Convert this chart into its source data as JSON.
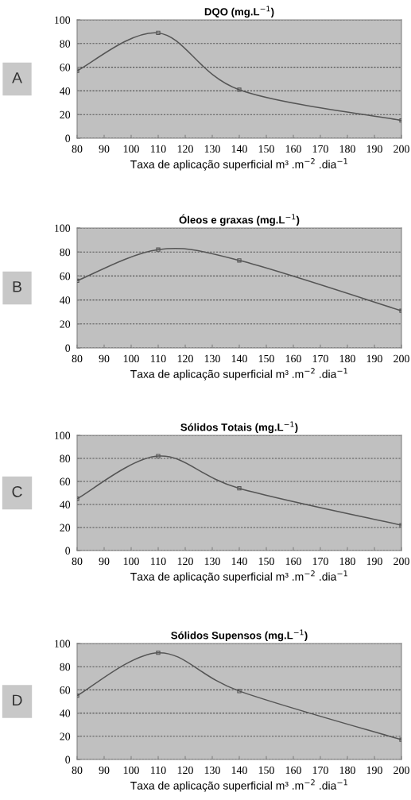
{
  "chart_data": [
    {
      "type": "line",
      "title": "DQO (mg.L$^{−1}$)",
      "xlabel": "Taxa de aplicação superficial m³ .m$^{−2}$ .dia$^{−1}$",
      "annotations": [
        "A"
      ],
      "x": [
        80,
        110,
        140,
        200
      ],
      "series": [
        {
          "color": "#555555",
          "values": [
            57,
            89,
            41,
            15
          ]
        }
      ],
      "xlim": [
        80,
        200
      ],
      "xticks": [
        80,
        90,
        100,
        110,
        120,
        130,
        140,
        150,
        160,
        170,
        180,
        190,
        200
      ],
      "ylim": [
        0,
        100
      ],
      "yticks": [
        0,
        20,
        40,
        60,
        80,
        100
      ],
      "grid": "y",
      "marker": "square",
      "line_style": "solid"
    },
    {
      "type": "line",
      "title": "Óleos e graxas (mg.L$^{−1}$)",
      "xlabel": "Taxa de aplicação superficial m³ .m$^{−2}$ .dia$^{−1}$",
      "annotations": [
        "B"
      ],
      "x": [
        80,
        110,
        140,
        200
      ],
      "series": [
        {
          "color": "#555555",
          "values": [
            56,
            82,
            73,
            31
          ]
        }
      ],
      "xlim": [
        80,
        200
      ],
      "xticks": [
        80,
        90,
        100,
        110,
        120,
        130,
        140,
        150,
        160,
        170,
        180,
        190,
        200
      ],
      "ylim": [
        0,
        100
      ],
      "yticks": [
        0,
        20,
        40,
        60,
        80,
        100
      ],
      "grid": "y",
      "marker": "square",
      "line_style": "solid"
    },
    {
      "type": "line",
      "title": "Sólidos Totais (mg.L$^{−1}$)",
      "xlabel": "Taxa de aplicação superficial m³ .m$^{−2}$ .dia$^{−1}$",
      "annotations": [
        "C"
      ],
      "x": [
        80,
        110,
        140,
        200
      ],
      "series": [
        {
          "color": "#555555",
          "values": [
            45,
            82,
            54,
            22
          ]
        }
      ],
      "xlim": [
        80,
        200
      ],
      "xticks": [
        80,
        90,
        100,
        110,
        120,
        130,
        140,
        150,
        160,
        170,
        180,
        190,
        200
      ],
      "ylim": [
        0,
        100
      ],
      "yticks": [
        0,
        20,
        40,
        60,
        80,
        100
      ],
      "grid": "y",
      "marker": "square",
      "line_style": "solid"
    },
    {
      "type": "line",
      "title": "Sólidos Supensos (mg.L$^{−1}$)",
      "xlabel": "Taxa de aplicação superficial m³ .m$^{−2}$ .dia$^{−1}$",
      "annotations": [
        "D"
      ],
      "x": [
        80,
        110,
        140,
        200
      ],
      "series": [
        {
          "color": "#555555",
          "values": [
            55,
            92,
            59,
            17
          ]
        }
      ],
      "xlim": [
        80,
        200
      ],
      "xticks": [
        80,
        90,
        100,
        110,
        120,
        130,
        140,
        150,
        160,
        170,
        180,
        190,
        200
      ],
      "ylim": [
        0,
        100
      ],
      "yticks": [
        0,
        20,
        40,
        60,
        80,
        100
      ],
      "grid": "y",
      "marker": "square",
      "line_style": "solid"
    }
  ]
}
